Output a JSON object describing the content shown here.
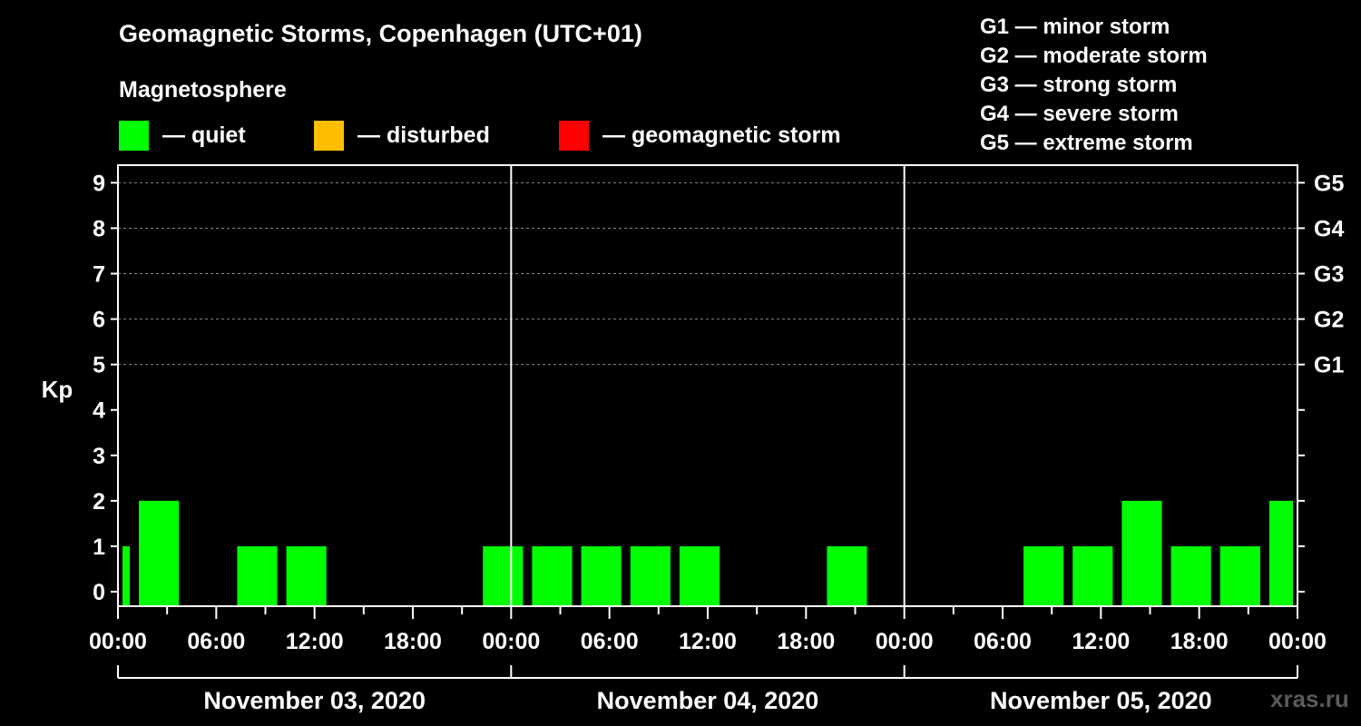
{
  "chart_data": {
    "type": "bar",
    "title": "Geomagnetic Storms, Copenhagen (UTC+01)",
    "subtitle": "Magnetosphere",
    "ylabel": "Kp",
    "ylim": [
      0,
      9
    ],
    "yticks": [
      "0",
      "1",
      "2",
      "3",
      "4",
      "5",
      "6",
      "7",
      "8",
      "9"
    ],
    "right_ticks": [
      {
        "kp": 5,
        "label": "G1"
      },
      {
        "kp": 6,
        "label": "G2"
      },
      {
        "kp": 7,
        "label": "G3"
      },
      {
        "kp": 8,
        "label": "G4"
      },
      {
        "kp": 9,
        "label": "G5"
      }
    ],
    "xlim_hours": [
      0,
      72
    ],
    "xtick_labels": [
      "00:00",
      "06:00",
      "12:00",
      "18:00",
      "00:00",
      "06:00",
      "12:00",
      "18:00",
      "00:00",
      "06:00",
      "12:00",
      "18:00",
      "00:00"
    ],
    "days": [
      "November 03, 2020",
      "November 04, 2020",
      "November 05, 2020"
    ],
    "bars": [
      {
        "start": 0,
        "end": 1,
        "kp": 1,
        "level": "quiet"
      },
      {
        "start": 1,
        "end": 4,
        "kp": 2,
        "level": "quiet"
      },
      {
        "start": 7,
        "end": 10,
        "kp": 1,
        "level": "quiet"
      },
      {
        "start": 10,
        "end": 13,
        "kp": 1,
        "level": "quiet"
      },
      {
        "start": 22,
        "end": 25,
        "kp": 1,
        "level": "quiet"
      },
      {
        "start": 25,
        "end": 28,
        "kp": 1,
        "level": "quiet"
      },
      {
        "start": 28,
        "end": 31,
        "kp": 1,
        "level": "quiet"
      },
      {
        "start": 31,
        "end": 34,
        "kp": 1,
        "level": "quiet"
      },
      {
        "start": 34,
        "end": 37,
        "kp": 1,
        "level": "quiet"
      },
      {
        "start": 43,
        "end": 46,
        "kp": 1,
        "level": "quiet"
      },
      {
        "start": 55,
        "end": 58,
        "kp": 1,
        "level": "quiet"
      },
      {
        "start": 58,
        "end": 61,
        "kp": 1,
        "level": "quiet"
      },
      {
        "start": 61,
        "end": 64,
        "kp": 2,
        "level": "quiet"
      },
      {
        "start": 64,
        "end": 67,
        "kp": 1,
        "level": "quiet"
      },
      {
        "start": 67,
        "end": 70,
        "kp": 1,
        "level": "quiet"
      },
      {
        "start": 70,
        "end": 72,
        "kp": 2,
        "level": "quiet"
      }
    ],
    "colors": {
      "quiet": "#00ff00",
      "disturbed": "#ffbf00",
      "storm": "#ff0000",
      "grid": "#888888"
    }
  },
  "legend": [
    {
      "label": "— quiet",
      "color": "#00ff00"
    },
    {
      "label": "— disturbed",
      "color": "#ffbf00"
    },
    {
      "label": "— geomagnetic storm",
      "color": "#ff0000"
    }
  ],
  "storm_scale": [
    "G1 — minor storm",
    "G2 — moderate storm",
    "G3 — strong storm",
    "G4 — severe storm",
    "G5 — extreme storm"
  ],
  "watermark": "xras.ru"
}
